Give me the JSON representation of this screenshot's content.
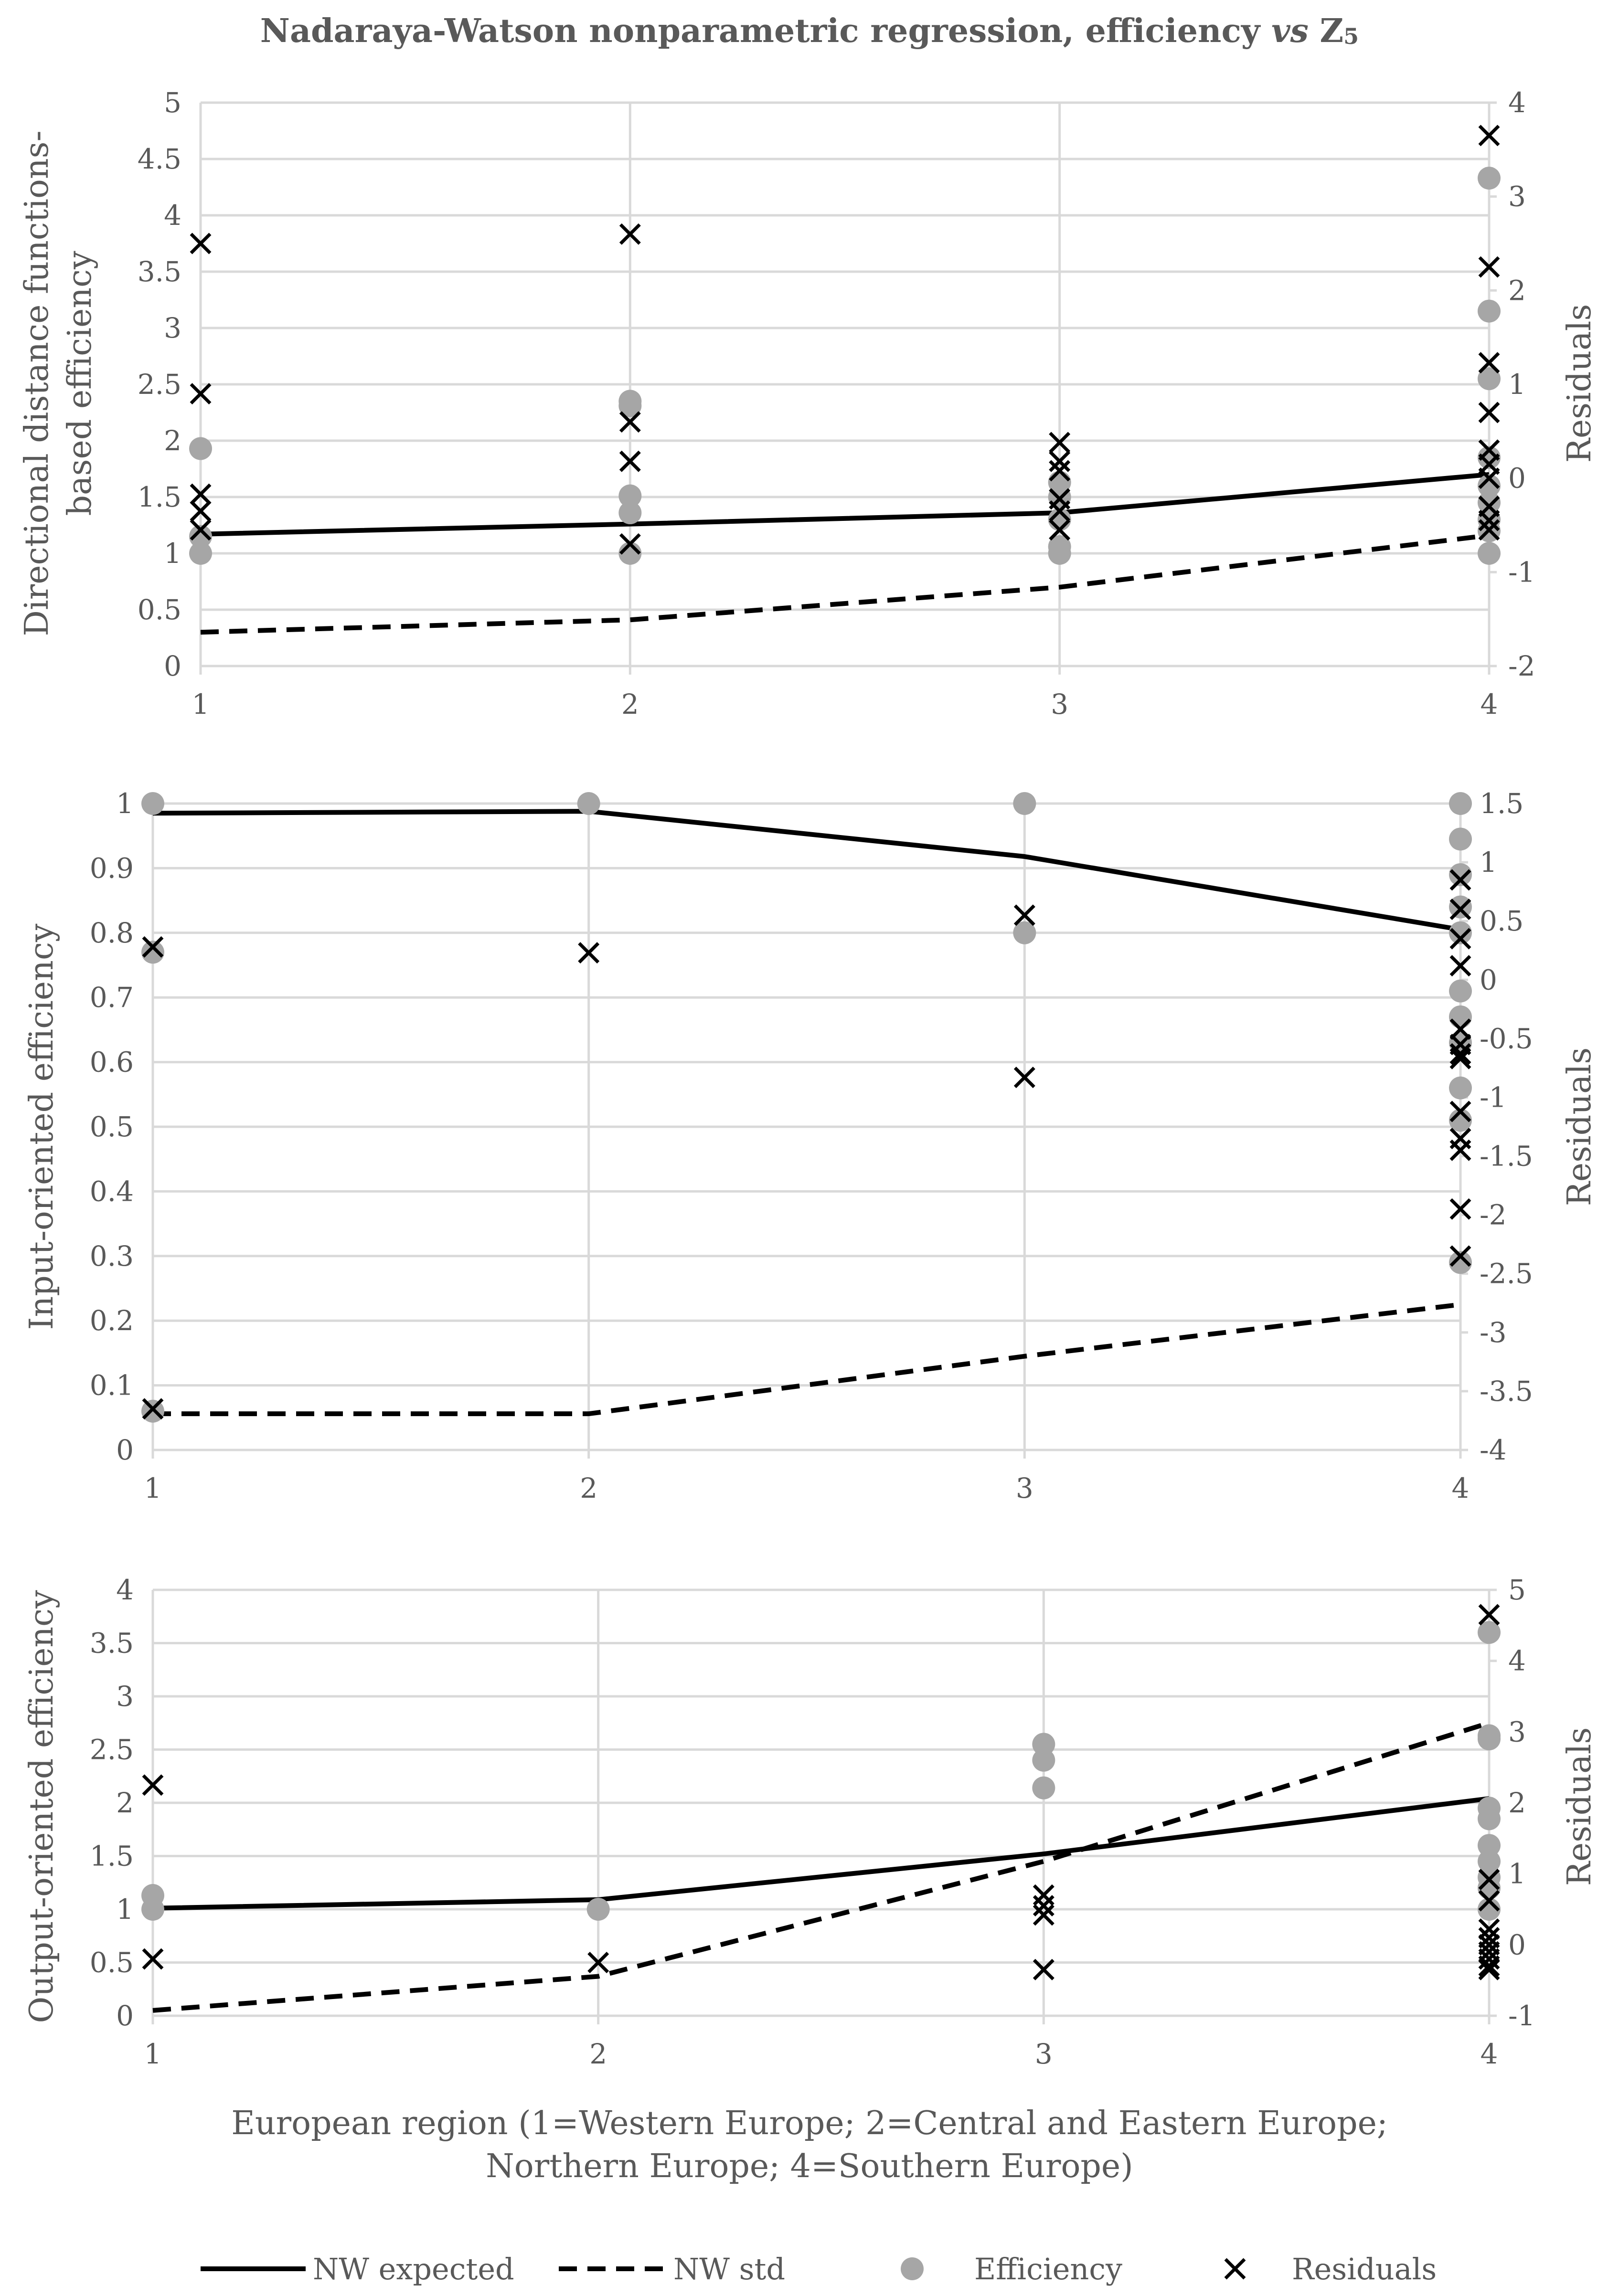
{
  "title": {
    "prefix": "Nadaraya-Watson nonparametric regression, efficiency ",
    "italic": "vs",
    "suffix": " Z",
    "subscript": "5"
  },
  "xlabel_line1": "European region (1=Western Europe; 2=Central and Eastern Europe;",
  "xlabel_line2": "Northern Europe; 4=Southern Europe)",
  "legend": {
    "nw_expected": "NW expected",
    "nw_std": "NW std",
    "efficiency": "Efficiency",
    "residuals": "Residuals"
  },
  "colors": {
    "line": "#000000",
    "efficiency": "#a6a6a6",
    "residuals": "#000000",
    "grid": "#d9d9d9",
    "text": "#595959"
  },
  "chart_data": [
    {
      "type": "scatter",
      "ylabel_line1": "Directional distance functions-",
      "ylabel_line2": "based efficiency",
      "y2label": "Residuals",
      "x": [
        1,
        2,
        3,
        4
      ],
      "xlim": [
        1,
        4
      ],
      "ylim": [
        0,
        5
      ],
      "yticks": [
        0,
        0.5,
        1,
        1.5,
        2,
        2.5,
        3,
        3.5,
        4,
        4.5,
        5
      ],
      "ytick_labels": [
        "0",
        "0.5",
        "1",
        "1.5",
        "2",
        "2.5",
        "3",
        "3.5",
        "4",
        "4.5",
        "5"
      ],
      "y2lim": [
        -2,
        4
      ],
      "y2ticks": [
        -2,
        -1,
        0,
        1,
        2,
        3,
        4
      ],
      "y2tick_labels": [
        "-2",
        "-1",
        "0",
        "1",
        "2",
        "3",
        "4"
      ],
      "nw_expected": [
        1.17,
        1.26,
        1.36,
        1.7
      ],
      "nw_std": [
        0.3,
        0.41,
        0.7,
        1.16
      ],
      "efficiency": [
        [
          1,
          1.0
        ],
        [
          1,
          1.15
        ],
        [
          1,
          1.93
        ],
        [
          2,
          1.0
        ],
        [
          2,
          1.36
        ],
        [
          2,
          1.51
        ],
        [
          2,
          2.31
        ],
        [
          2,
          2.35
        ],
        [
          3,
          1.0
        ],
        [
          3,
          1.06
        ],
        [
          3,
          1.3
        ],
        [
          3,
          1.5
        ],
        [
          3,
          1.63
        ],
        [
          4,
          1.0
        ],
        [
          4,
          1.2
        ],
        [
          4,
          1.3
        ],
        [
          4,
          1.45
        ],
        [
          4,
          1.6
        ],
        [
          4,
          1.85
        ],
        [
          4,
          2.55
        ],
        [
          4,
          3.15
        ],
        [
          4,
          4.33
        ]
      ],
      "residuals": [
        [
          1,
          -0.55
        ],
        [
          1,
          -0.35
        ],
        [
          1,
          -0.17
        ],
        [
          1,
          0.9
        ],
        [
          1,
          2.5
        ],
        [
          2,
          -0.7
        ],
        [
          2,
          0.18
        ],
        [
          2,
          0.6
        ],
        [
          2,
          2.6
        ],
        [
          3,
          -0.55
        ],
        [
          3,
          -0.35
        ],
        [
          3,
          -0.22
        ],
        [
          3,
          0.08
        ],
        [
          3,
          0.18
        ],
        [
          3,
          0.38
        ],
        [
          4,
          -0.55
        ],
        [
          4,
          -0.45
        ],
        [
          4,
          -0.3
        ],
        [
          4,
          0.0
        ],
        [
          4,
          0.15
        ],
        [
          4,
          0.3
        ],
        [
          4,
          0.7
        ],
        [
          4,
          1.23
        ],
        [
          4,
          2.25
        ],
        [
          4,
          3.65
        ]
      ]
    },
    {
      "type": "scatter",
      "ylabel_line1": "Input-oriented efficiency",
      "ylabel_line2": "",
      "y2label": "Residuals",
      "x": [
        1,
        2,
        3,
        4
      ],
      "xlim": [
        1,
        4
      ],
      "ylim": [
        0,
        1
      ],
      "yticks": [
        0,
        0.1,
        0.2,
        0.3,
        0.4,
        0.5,
        0.6,
        0.7,
        0.8,
        0.9,
        1
      ],
      "ytick_labels": [
        "0",
        "0.1",
        "0.2",
        "0.3",
        "0.4",
        "0.5",
        "0.6",
        "0.7",
        "0.8",
        "0.9",
        "1"
      ],
      "y2lim": [
        -4,
        1.5
      ],
      "y2ticks": [
        -4,
        -3.5,
        -3,
        -2.5,
        -2,
        -1.5,
        -1,
        -0.5,
        0,
        0.5,
        1,
        1.5
      ],
      "y2tick_labels": [
        "-4",
        "-3.5",
        "-3",
        "-2.5",
        "-2",
        "-1.5",
        "-1",
        "-0.5",
        "0",
        "0.5",
        "1",
        "1.5"
      ],
      "nw_expected": [
        0.985,
        0.988,
        0.918,
        0.805
      ],
      "nw_std": [
        0.056,
        0.056,
        0.145,
        0.225
      ],
      "efficiency": [
        [
          1,
          1.0
        ],
        [
          1,
          0.77
        ],
        [
          1,
          0.06
        ],
        [
          2,
          1.0
        ],
        [
          3,
          1.0
        ],
        [
          3,
          0.8
        ],
        [
          4,
          1.0
        ],
        [
          4,
          0.945
        ],
        [
          4,
          0.89
        ],
        [
          4,
          0.84
        ],
        [
          4,
          0.8
        ],
        [
          4,
          0.71
        ],
        [
          4,
          0.67
        ],
        [
          4,
          0.63
        ],
        [
          4,
          0.56
        ],
        [
          4,
          0.51
        ],
        [
          4,
          0.29
        ]
      ],
      "residuals": [
        [
          1,
          0.28
        ],
        [
          1,
          -3.65
        ],
        [
          2,
          0.23
        ],
        [
          3,
          0.55
        ],
        [
          3,
          -0.83
        ],
        [
          4,
          0.85
        ],
        [
          4,
          0.6
        ],
        [
          4,
          0.35
        ],
        [
          4,
          0.12
        ],
        [
          4,
          -0.42
        ],
        [
          4,
          -0.55
        ],
        [
          4,
          -0.63
        ],
        [
          4,
          -0.67
        ],
        [
          4,
          -1.12
        ],
        [
          4,
          -1.35
        ],
        [
          4,
          -1.45
        ],
        [
          4,
          -1.95
        ],
        [
          4,
          -2.35
        ]
      ]
    },
    {
      "type": "scatter",
      "ylabel_line1": "Output-oriented efficiency",
      "ylabel_line2": "",
      "y2label": "Residuals",
      "x": [
        1,
        2,
        3,
        4
      ],
      "xlim": [
        1,
        4
      ],
      "ylim": [
        0,
        4
      ],
      "yticks": [
        0,
        0.5,
        1,
        1.5,
        2,
        2.5,
        3,
        3.5,
        4
      ],
      "ytick_labels": [
        "0",
        "0.5",
        "1",
        "1.5",
        "2",
        "2.5",
        "3",
        "3.5",
        "4"
      ],
      "y2lim": [
        -1,
        5
      ],
      "y2ticks": [
        -1,
        0,
        1,
        2,
        3,
        4,
        5
      ],
      "y2tick_labels": [
        "-1",
        "0",
        "1",
        "2",
        "3",
        "4",
        "5"
      ],
      "nw_expected": [
        1.01,
        1.09,
        1.52,
        2.04
      ],
      "nw_std": [
        0.05,
        0.37,
        1.45,
        2.75
      ],
      "efficiency": [
        [
          1,
          1.0
        ],
        [
          1,
          1.13
        ],
        [
          2,
          1.0
        ],
        [
          3,
          2.14
        ],
        [
          3,
          2.4
        ],
        [
          3,
          2.55
        ],
        [
          4,
          1.0
        ],
        [
          4,
          1.2
        ],
        [
          4,
          1.3
        ],
        [
          4,
          1.45
        ],
        [
          4,
          1.6
        ],
        [
          4,
          1.85
        ],
        [
          4,
          1.95
        ],
        [
          4,
          2.6
        ],
        [
          4,
          2.63
        ],
        [
          4,
          3.6
        ]
      ],
      "residuals": [
        [
          1,
          2.25
        ],
        [
          1,
          -0.2
        ],
        [
          2,
          -0.25
        ],
        [
          3,
          0.7
        ],
        [
          3,
          0.55
        ],
        [
          3,
          0.42
        ],
        [
          3,
          -0.35
        ],
        [
          4,
          4.65
        ],
        [
          4,
          0.92
        ],
        [
          4,
          0.62
        ],
        [
          4,
          0.22
        ],
        [
          4,
          0.1
        ],
        [
          4,
          0.0
        ],
        [
          4,
          -0.1
        ],
        [
          4,
          -0.2
        ],
        [
          4,
          -0.3
        ],
        [
          4,
          -0.35
        ]
      ]
    }
  ]
}
